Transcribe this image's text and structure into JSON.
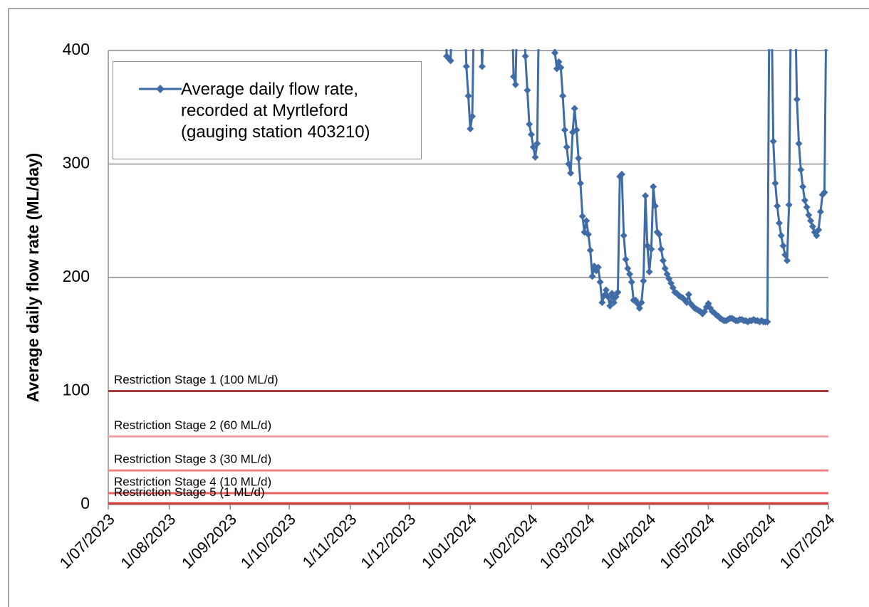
{
  "chart_data": {
    "type": "line",
    "ylabel": "Average daily  flow rate (ML/day)",
    "ylim": [
      0,
      400
    ],
    "yticks": [
      0,
      100,
      200,
      300,
      400
    ],
    "grid": true,
    "xlim": [
      "2023-07-01",
      "2024-07-01"
    ],
    "xticks": [
      {
        "value": "2023-07-01",
        "label": "1/07/2023"
      },
      {
        "value": "2023-08-01",
        "label": "1/08/2023"
      },
      {
        "value": "2023-09-01",
        "label": "1/09/2023"
      },
      {
        "value": "2023-10-01",
        "label": "1/10/2023"
      },
      {
        "value": "2023-11-01",
        "label": "1/11/2023"
      },
      {
        "value": "2023-12-01",
        "label": "1/12/2023"
      },
      {
        "value": "2024-01-01",
        "label": "1/01/2024"
      },
      {
        "value": "2024-02-01",
        "label": "1/02/2024"
      },
      {
        "value": "2024-03-01",
        "label": "1/03/2024"
      },
      {
        "value": "2024-04-01",
        "label": "1/04/2024"
      },
      {
        "value": "2024-05-01",
        "label": "1/05/2024"
      },
      {
        "value": "2024-06-01",
        "label": "1/06/2024"
      },
      {
        "value": "2024-07-01",
        "label": "1/07/2024"
      }
    ],
    "thresholds": [
      {
        "label": "Restriction  Stage 1 (100 ML/d)",
        "value": 100,
        "color": "#a93a36"
      },
      {
        "label": "Restriction Stage  2 (60 ML/d)",
        "value": 60,
        "color": "#f4a3a3"
      },
      {
        "label": "Restriction Stage  3 (30 ML/d)",
        "value": 30,
        "color": "#f08585"
      },
      {
        "label": "Restriction Stage  4 (10 ML/d)",
        "value": 10,
        "color": "#e96262"
      },
      {
        "label": "Restriction Stage  5 (1 ML/d)",
        "value": 1,
        "color": "#d63a3a"
      }
    ],
    "series": [
      {
        "name": "Average daily flow rate, recorded at Myrtleford (gauging station 403210)",
        "color": "#3f6ca6",
        "x": [
          "2023-12-19",
          "2023-12-20",
          "2023-12-21",
          "2023-12-22",
          "2023-12-23",
          "2023-12-29",
          "2023-12-30",
          "2023-12-31",
          "2024-01-01",
          "2024-01-02",
          "2024-01-03",
          "2024-01-06",
          "2024-01-07",
          "2024-01-08",
          "2024-01-22",
          "2024-01-23",
          "2024-01-24",
          "2024-01-25",
          "2024-01-28",
          "2024-01-29",
          "2024-01-30",
          "2024-01-31",
          "2024-02-01",
          "2024-02-02",
          "2024-02-03",
          "2024-02-04",
          "2024-02-05",
          "2024-02-12",
          "2024-02-13",
          "2024-02-14",
          "2024-02-15",
          "2024-02-16",
          "2024-02-17",
          "2024-02-18",
          "2024-02-19",
          "2024-02-20",
          "2024-02-21",
          "2024-02-22",
          "2024-02-23",
          "2024-02-24",
          "2024-02-25",
          "2024-02-26",
          "2024-02-27",
          "2024-02-28",
          "2024-02-29",
          "2024-03-01",
          "2024-03-02",
          "2024-03-03",
          "2024-03-04",
          "2024-03-05",
          "2024-03-06",
          "2024-03-07",
          "2024-03-08",
          "2024-03-09",
          "2024-03-10",
          "2024-03-11",
          "2024-03-12",
          "2024-03-13",
          "2024-03-14",
          "2024-03-15",
          "2024-03-16",
          "2024-03-17",
          "2024-03-18",
          "2024-03-19",
          "2024-03-20",
          "2024-03-21",
          "2024-03-22",
          "2024-03-23",
          "2024-03-24",
          "2024-03-25",
          "2024-03-26",
          "2024-03-27",
          "2024-03-28",
          "2024-03-29",
          "2024-03-30",
          "2024-03-31",
          "2024-04-01",
          "2024-04-02",
          "2024-04-03",
          "2024-04-04",
          "2024-04-05",
          "2024-04-06",
          "2024-04-07",
          "2024-04-08",
          "2024-04-09",
          "2024-04-10",
          "2024-04-11",
          "2024-04-12",
          "2024-04-13",
          "2024-04-14",
          "2024-04-15",
          "2024-04-16",
          "2024-04-17",
          "2024-04-18",
          "2024-04-19",
          "2024-04-20",
          "2024-04-21",
          "2024-04-22",
          "2024-04-23",
          "2024-04-24",
          "2024-04-25",
          "2024-04-26",
          "2024-04-27",
          "2024-04-28",
          "2024-04-29",
          "2024-04-30",
          "2024-05-01",
          "2024-05-02",
          "2024-05-03",
          "2024-05-04",
          "2024-05-05",
          "2024-05-06",
          "2024-05-07",
          "2024-05-08",
          "2024-05-09",
          "2024-05-10",
          "2024-05-11",
          "2024-05-12",
          "2024-05-13",
          "2024-05-14",
          "2024-05-15",
          "2024-05-16",
          "2024-05-17",
          "2024-05-18",
          "2024-05-19",
          "2024-05-20",
          "2024-05-21",
          "2024-05-22",
          "2024-05-23",
          "2024-05-24",
          "2024-05-25",
          "2024-05-26",
          "2024-05-27",
          "2024-05-28",
          "2024-05-29",
          "2024-05-30",
          "2024-05-31",
          "2024-06-01",
          "2024-06-02",
          "2024-06-03",
          "2024-06-04",
          "2024-06-05",
          "2024-06-06",
          "2024-06-07",
          "2024-06-08",
          "2024-06-09",
          "2024-06-10",
          "2024-06-11",
          "2024-06-12",
          "2024-06-13",
          "2024-06-14",
          "2024-06-15",
          "2024-06-16",
          "2024-06-17",
          "2024-06-18",
          "2024-06-19",
          "2024-06-20",
          "2024-06-21",
          "2024-06-22",
          "2024-06-23",
          "2024-06-24",
          "2024-06-25",
          "2024-06-26",
          "2024-06-27",
          "2024-06-28",
          "2024-06-29",
          "2024-06-30"
        ],
        "values": [
          450,
          395,
          393,
          391,
          450,
          450,
          386,
          360,
          331,
          342,
          450,
          450,
          386,
          450,
          450,
          377,
          370,
          450,
          450,
          395,
          365,
          335,
          326,
          315,
          306,
          318,
          450,
          450,
          398,
          384,
          390,
          385,
          360,
          330,
          315,
          300,
          292,
          328,
          349,
          330,
          305,
          283,
          254,
          240,
          250,
          238,
          224,
          201,
          210,
          206,
          209,
          196,
          178,
          184,
          189,
          183,
          175,
          186,
          178,
          183,
          187,
          289,
          291,
          237,
          216,
          208,
          203,
          196,
          180,
          180,
          177,
          173,
          178,
          197,
          272,
          228,
          205,
          225,
          280,
          263,
          240,
          238,
          225,
          215,
          208,
          203,
          199,
          195,
          191,
          187,
          186,
          184,
          183,
          182,
          180,
          178,
          185,
          177,
          175,
          173,
          172,
          171,
          170,
          168,
          170,
          174,
          177,
          173,
          170,
          169,
          167,
          166,
          164,
          163,
          162,
          162,
          163,
          164,
          164,
          163,
          162,
          162,
          163,
          163,
          162,
          162,
          161,
          162,
          162,
          163,
          162,
          162,
          161,
          162,
          161,
          161,
          161,
          450,
          450,
          320,
          283,
          263,
          248,
          237,
          228,
          220,
          215,
          264,
          450,
          450,
          450,
          357,
          318,
          295,
          280,
          268,
          262,
          255,
          250,
          245,
          240,
          237,
          242,
          258,
          273,
          275,
          450
        ]
      }
    ]
  }
}
